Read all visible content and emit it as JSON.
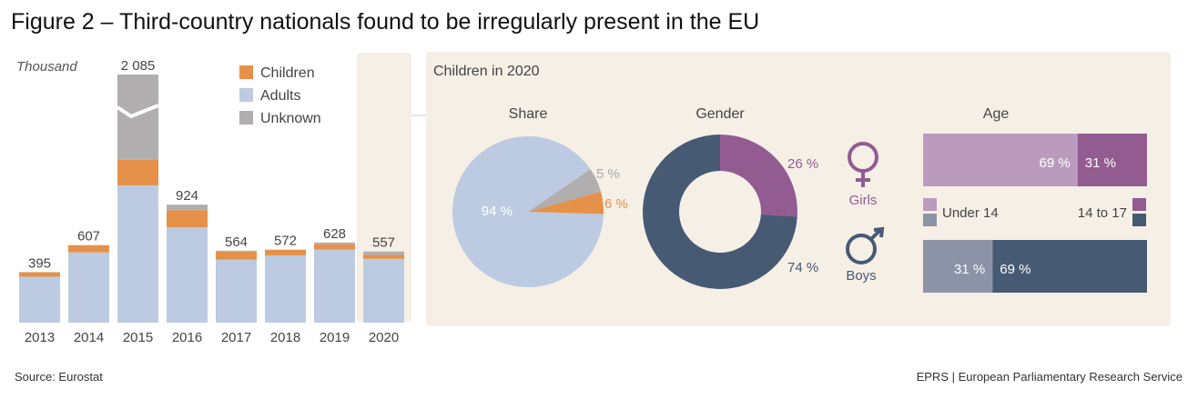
{
  "title": "Figure 2 – Third-country nationals found to be irregularly present in the EU",
  "source": "Source: Eurostat",
  "credit": "EPRS | European Parliamentary Research Service",
  "colors": {
    "children": "#e5914a",
    "adults": "#bccbe1",
    "unknown": "#b0aeae",
    "girls_under14": "#bb9bbd",
    "girls_14to17": "#935c91",
    "boys_under14": "#8c93a6",
    "boys_14to17": "#475a74",
    "panel": "#f5efe6"
  },
  "chart_data": [
    {
      "type": "bar",
      "stacked": true,
      "unit_label": "Thousand",
      "categories": [
        "2013",
        "2014",
        "2015",
        "2016",
        "2017",
        "2018",
        "2019",
        "2020"
      ],
      "series": [
        {
          "name": "Adults",
          "values": [
            360,
            550,
            1075,
            746,
            493,
            527,
            571,
            500
          ]
        },
        {
          "name": "Children",
          "values": [
            35,
            57,
            200,
            135,
            64,
            43,
            43,
            30
          ]
        },
        {
          "name": "Unknown",
          "values": [
            0,
            0,
            810,
            43,
            7,
            2,
            14,
            27
          ]
        }
      ],
      "totals": [
        "395",
        "607",
        "2 085",
        "924",
        "564",
        "572",
        "628",
        "557"
      ],
      "axis_break": "2015",
      "legend": [
        "Children",
        "Adults",
        "Unknown"
      ],
      "legend_placement": "top-right"
    },
    {
      "type": "pie",
      "panel_title": "Children in 2020",
      "title": "Share",
      "slices": [
        {
          "label": "94 %",
          "value": 94,
          "color": "adults"
        },
        {
          "label": "5 %",
          "value": 5,
          "color": "unknown"
        },
        {
          "label": "6 %",
          "value": 6,
          "color": "children"
        }
      ]
    },
    {
      "type": "pie",
      "donut": true,
      "title": "Gender",
      "slices": [
        {
          "label": "26 %",
          "value": 26,
          "color": "girls_14to17"
        },
        {
          "label": "74 %",
          "value": 74,
          "color": "boys_14to17"
        }
      ]
    },
    {
      "type": "bar",
      "orientation": "horizontal",
      "stacked": true,
      "title": "Age",
      "categories": [
        "Girls",
        "Boys"
      ],
      "series": [
        {
          "name": "Under 14",
          "values": [
            69,
            31
          ],
          "labels": [
            "69 %",
            "31 %"
          ]
        },
        {
          "name": "14 to 17",
          "values": [
            31,
            69
          ],
          "labels": [
            "31 %",
            "69 %"
          ]
        }
      ]
    }
  ]
}
